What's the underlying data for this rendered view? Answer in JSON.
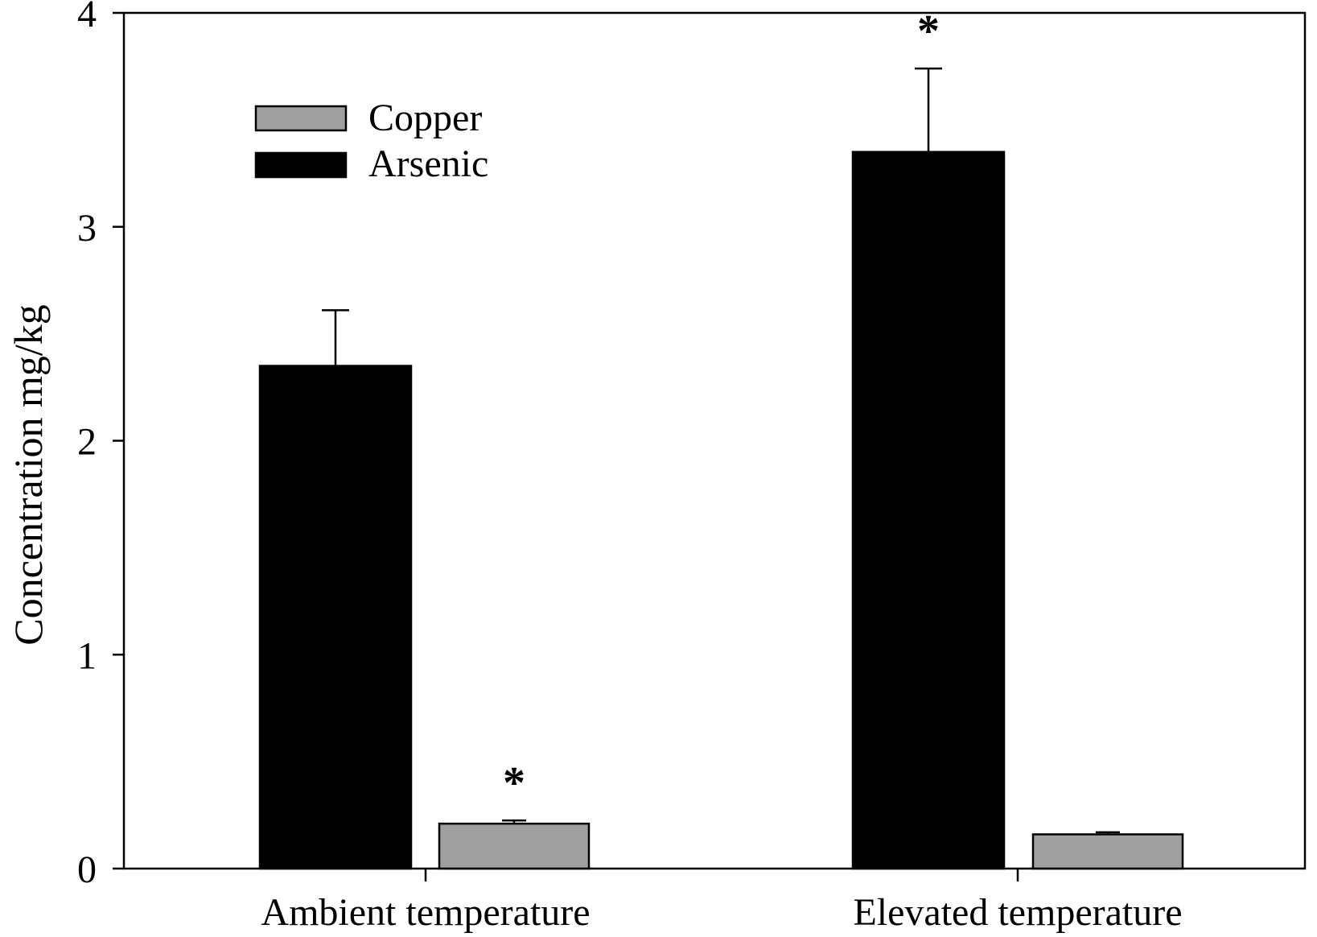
{
  "chart_data": {
    "type": "bar",
    "categories": [
      "Ambient temperature",
      "Elevated temperature"
    ],
    "series": [
      {
        "name": "Arsenic",
        "values": [
          2.35,
          3.35
        ],
        "error": [
          0.26,
          0.39
        ],
        "color": "#000000",
        "significance": [
          "",
          "*"
        ]
      },
      {
        "name": "Copper",
        "values": [
          0.21,
          0.16
        ],
        "error": [
          0.015,
          0.01
        ],
        "color": "#a0a0a0",
        "significance": [
          "*",
          ""
        ]
      }
    ],
    "legend_order": [
      "Copper",
      "Arsenic"
    ],
    "legend_position": "top-left",
    "title": "",
    "xlabel": "",
    "ylabel": "Concentration  mg/kg",
    "ylim": [
      0,
      4
    ],
    "yticks": [
      "0",
      "1",
      "2",
      "3",
      "4"
    ],
    "grid": false
  }
}
